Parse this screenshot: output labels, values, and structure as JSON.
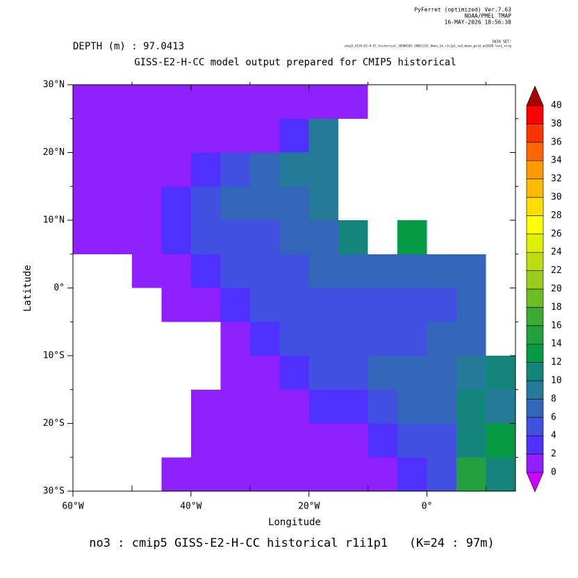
{
  "chart_data": {
    "type": "map",
    "header": [
      "PyFerret (optimized) Ver.7.63",
      "NOAA/PMEL TMAP",
      "16-MAY-2026 18:56:38"
    ],
    "dataset_label": "DATA SET:",
    "dataset": "cmip5_GISS-E2-H-CC_historical_18500101-20051231_Omon_1m_r1i1p1_no3_mean.grid_at2020-lev1_orig",
    "subtitle": "DEPTH (m) : 97.0413",
    "title": "GISS-E2-H-CC model output prepared for CMIP5 historical",
    "x_label": "Longitude",
    "y_label": "Latitude",
    "caption": "no3 : cmip5 GISS-E2-H-CC historical r1i1p1   (K=24 : 97m)",
    "xlim": [
      -60,
      15
    ],
    "ylim": [
      -30,
      30
    ],
    "xticks": [
      {
        "value": -60,
        "label": "60°W"
      },
      {
        "value": -40,
        "label": "40°W"
      },
      {
        "value": -20,
        "label": "20°W"
      },
      {
        "value": 0,
        "label": "0°"
      }
    ],
    "xminor": [
      -50,
      -30,
      -10,
      10
    ],
    "yticks": [
      {
        "value": -30,
        "label": "30°S"
      },
      {
        "value": -20,
        "label": "20°S"
      },
      {
        "value": -10,
        "label": "10°S"
      },
      {
        "value": 0,
        "label": "0°"
      },
      {
        "value": 10,
        "label": "10°N"
      },
      {
        "value": 20,
        "label": "20°N"
      },
      {
        "value": 30,
        "label": "30°N"
      }
    ],
    "yminor": [
      -25,
      -15,
      -5,
      5,
      15,
      25
    ],
    "lon": [
      -57.5,
      -52.5,
      -47.5,
      -42.5,
      -37.5,
      -32.5,
      -27.5,
      -22.5,
      -17.5,
      -12.5,
      -7.5,
      -2.5,
      2.5,
      7.5,
      12.5
    ],
    "lat": [
      27.5,
      22.5,
      17.5,
      12.5,
      7.5,
      2.5,
      -2.5,
      -7.5,
      -12.5,
      -17.5,
      -22.5,
      -27.5
    ],
    "cell_size": 5,
    "values": [
      [
        1,
        1,
        1,
        1,
        1,
        1,
        1,
        1,
        1,
        1,
        null,
        null,
        null,
        null,
        null
      ],
      [
        1,
        1,
        1,
        1,
        1,
        1,
        1,
        3,
        9,
        null,
        null,
        null,
        null,
        null,
        null
      ],
      [
        1,
        1,
        1,
        1,
        3,
        5,
        6,
        8,
        9,
        null,
        null,
        null,
        null,
        null,
        null
      ],
      [
        1,
        1,
        1,
        3,
        5,
        6,
        6,
        7,
        8,
        null,
        null,
        null,
        null,
        null,
        null
      ],
      [
        1,
        1,
        1,
        3,
        4,
        5,
        5,
        6,
        7,
        10,
        null,
        12,
        null,
        null,
        null
      ],
      [
        null,
        null,
        1,
        1,
        2,
        4,
        5,
        5,
        6,
        6,
        6,
        7,
        7,
        6,
        null
      ],
      [
        null,
        null,
        null,
        1,
        1,
        3,
        4,
        5,
        5,
        5,
        5,
        5,
        5,
        6,
        null
      ],
      [
        null,
        null,
        null,
        null,
        null,
        1,
        2,
        4,
        5,
        5,
        5,
        5,
        6,
        7,
        null
      ],
      [
        null,
        null,
        null,
        null,
        null,
        1,
        1,
        2,
        4,
        5,
        6,
        6,
        7,
        8,
        10
      ],
      [
        null,
        null,
        null,
        null,
        1,
        1,
        1,
        1,
        2,
        3,
        5,
        6,
        7,
        10,
        8
      ],
      [
        null,
        null,
        null,
        null,
        1,
        1,
        1,
        1,
        1,
        1,
        2,
        4,
        5,
        10,
        12
      ],
      [
        null,
        null,
        null,
        1,
        1,
        1,
        1,
        1,
        1,
        1,
        1,
        2,
        5,
        14,
        10
      ]
    ],
    "colorbar": {
      "levels": [
        0,
        2,
        4,
        6,
        8,
        10,
        12,
        14,
        16,
        18,
        20,
        22,
        24,
        26,
        28,
        30,
        32,
        34,
        36,
        38,
        40
      ],
      "colors": [
        "#9020ff",
        "#5030ff",
        "#4050e0",
        "#3366bb",
        "#247b99",
        "#14857a",
        "#079a45",
        "#22a040",
        "#3aab30",
        "#6cbc22",
        "#9acc1c",
        "#bedd10",
        "#e0ef00",
        "#ffff00",
        "#ffdd00",
        "#ffbb00",
        "#ff9900",
        "#ff6600",
        "#ff3300",
        "#ff0000"
      ],
      "under_color": "#cc00ff",
      "over_color": "#aa0000"
    }
  }
}
